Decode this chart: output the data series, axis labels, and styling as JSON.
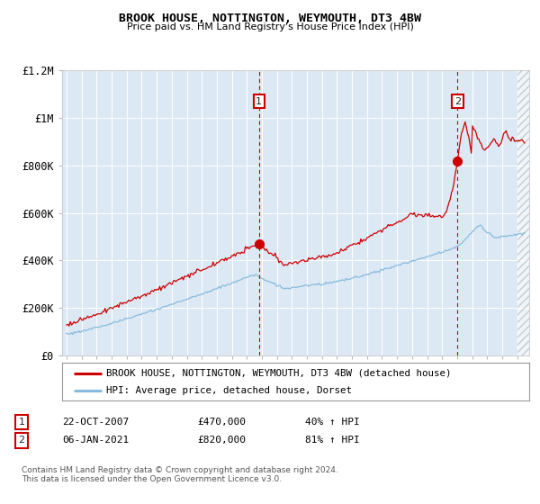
{
  "title": "BROOK HOUSE, NOTTINGTON, WEYMOUTH, DT3 4BW",
  "subtitle": "Price paid vs. HM Land Registry's House Price Index (HPI)",
  "legend_line1": "BROOK HOUSE, NOTTINGTON, WEYMOUTH, DT3 4BW (detached house)",
  "legend_line2": "HPI: Average price, detached house, Dorset",
  "annotation1_date": "22-OCT-2007",
  "annotation1_price": "£470,000",
  "annotation1_hpi": "40% ↑ HPI",
  "annotation2_date": "06-JAN-2021",
  "annotation2_price": "£820,000",
  "annotation2_hpi": "81% ↑ HPI",
  "footer": "Contains HM Land Registry data © Crown copyright and database right 2024.\nThis data is licensed under the Open Government Licence v3.0.",
  "fig_bg_color": "#ffffff",
  "plot_bg_color": "#dce9f5",
  "red_line_color": "#cc0000",
  "blue_line_color": "#88bbdd",
  "marker_color": "#cc0000",
  "vline_color": "#cc0000",
  "grid_color": "#ffffff",
  "marker1_x": 2007.81,
  "marker1_y": 470000,
  "marker2_x": 2021.02,
  "marker2_y": 820000,
  "ylim": [
    0,
    1200000
  ],
  "xlim_start": 1994.7,
  "xlim_end": 2025.8,
  "hatch_start": 2025.0,
  "yticks": [
    0,
    200000,
    400000,
    600000,
    800000,
    1000000,
    1200000
  ],
  "ytick_labels": [
    "£0",
    "£200K",
    "£400K",
    "£600K",
    "£800K",
    "£1M",
    "£1.2M"
  ]
}
